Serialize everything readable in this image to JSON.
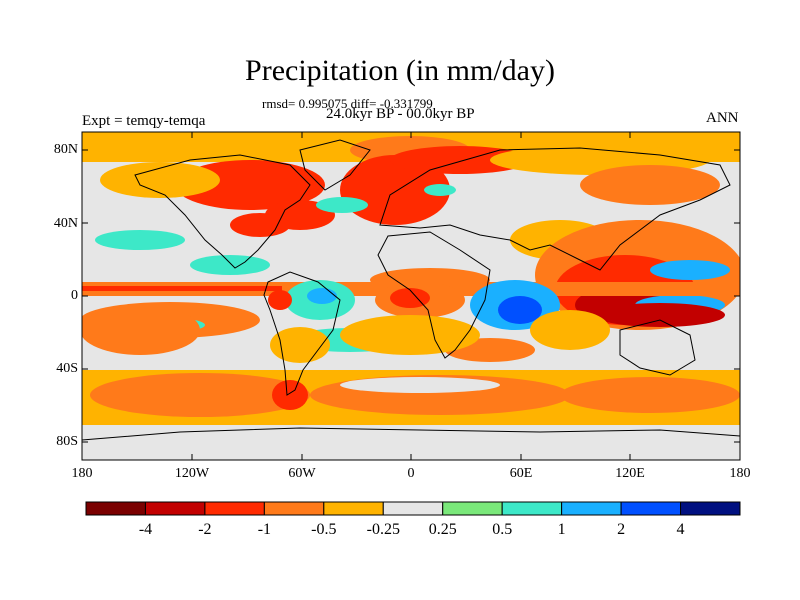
{
  "title": "Precipitation (in mm/day)",
  "stats": "rmsd= 0.995075 diff= -0.331799",
  "period": "24.0kyr BP - 00.0kyr BP",
  "experiment": "Expt = temqy-temqa",
  "season": "ANN",
  "lat_labels": [
    "80N",
    "40N",
    "0",
    "40S",
    "80S"
  ],
  "lon_labels": [
    "180",
    "120W",
    "60W",
    "0",
    "60E",
    "120E",
    "180"
  ],
  "colorbar": {
    "colors": [
      "#7a0000",
      "#c20000",
      "#ff2a00",
      "#ff7a1a",
      "#ffb300",
      "#e6e6e6",
      "#7ae87a",
      "#3de8c8",
      "#1ab0ff",
      "#0050ff",
      "#001080"
    ],
    "labels": [
      "-4",
      "-2",
      "-1",
      "-0.5",
      "-0.25",
      "0.25",
      "0.5",
      "1",
      "2",
      "4"
    ]
  }
}
